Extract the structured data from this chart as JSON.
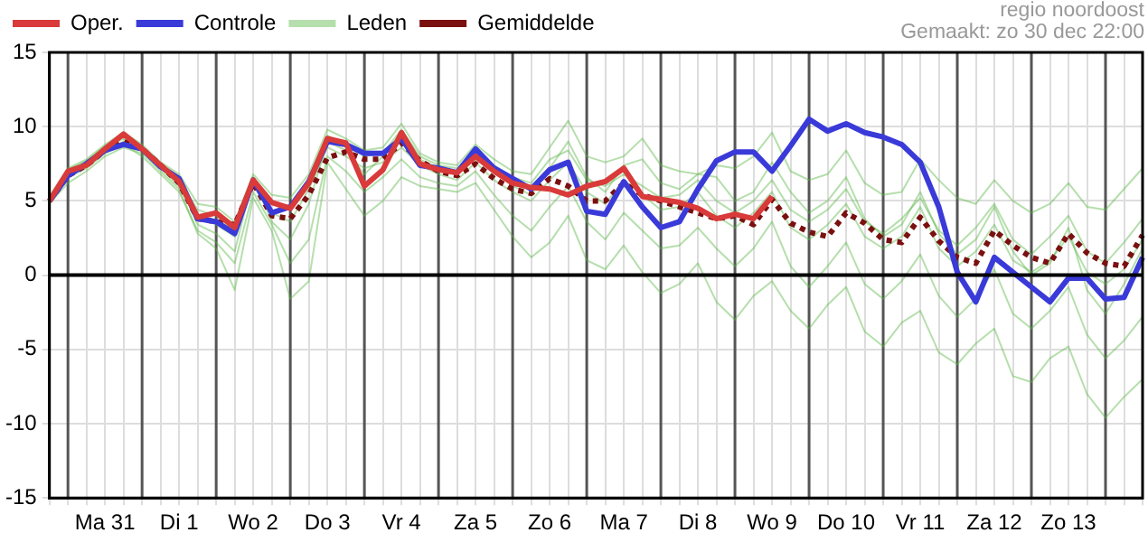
{
  "chart_data": {
    "type": "line",
    "annotations": [
      "regio noordoost",
      "Gemaakt: zo 30 dec 22:00"
    ],
    "categories": [
      null,
      null,
      null,
      "Ma 31",
      null,
      null,
      null,
      "Di 1",
      null,
      null,
      null,
      "Wo 2",
      null,
      null,
      null,
      "Do 3",
      null,
      null,
      null,
      "Vr 4",
      null,
      null,
      null,
      "Za 5",
      null,
      null,
      null,
      "Zo 6",
      null,
      null,
      null,
      "Ma 7",
      null,
      null,
      null,
      "Di 8",
      null,
      null,
      null,
      "Wo 9",
      null,
      null,
      null,
      "Do 10",
      null,
      null,
      null,
      "Vr 11",
      null,
      null,
      null,
      "Za 12",
      null,
      null,
      null,
      "Zo 13",
      null,
      null,
      null,
      null
    ],
    "ylim": [
      -15,
      15
    ],
    "yticks": [
      -15,
      -10,
      -5,
      0,
      5,
      10,
      15
    ],
    "grid": true,
    "legend": "top left",
    "marker": "none",
    "ref_lines": [
      {
        "axis": "y",
        "value": 0,
        "color": "#000000"
      }
    ],
    "series": [
      {
        "name": "Oper.",
        "color": "#d93a3a",
        "values": [
          5.0,
          7.0,
          7.4,
          8.5,
          9.5,
          8.5,
          7.4,
          6.3,
          3.9,
          4.2,
          3.2,
          6.4,
          4.9,
          4.5,
          6.2,
          9.2,
          8.9,
          6.0,
          7.1,
          9.6,
          7.5,
          7.1,
          6.9,
          8.0,
          7.0,
          6.2,
          5.9,
          5.8,
          5.4,
          6.0,
          6.3,
          7.2,
          5.3,
          5.1,
          4.9,
          4.5,
          3.8,
          4.1,
          3.8,
          5.3,
          null,
          null,
          null,
          null,
          null,
          null,
          null,
          null,
          null,
          null,
          null,
          null,
          null,
          null,
          null,
          null,
          null,
          null,
          null,
          null
        ]
      },
      {
        "name": "Controle",
        "color": "#3a3ad9",
        "values": [
          5.0,
          6.7,
          7.5,
          8.4,
          8.8,
          8.5,
          7.3,
          6.5,
          3.8,
          3.6,
          2.8,
          6.4,
          4.2,
          4.6,
          6.3,
          9.0,
          8.8,
          8.2,
          8.2,
          9.2,
          7.4,
          7.2,
          6.9,
          8.5,
          7.2,
          6.5,
          5.8,
          7.1,
          7.6,
          4.3,
          4.1,
          6.3,
          4.6,
          3.2,
          3.6,
          5.8,
          7.7,
          8.3,
          8.3,
          7.0,
          8.7,
          10.5,
          9.7,
          10.2,
          9.6,
          9.3,
          8.8,
          7.6,
          4.6,
          0.2,
          -1.8,
          1.2,
          0.2,
          -0.8,
          -1.8,
          -0.2,
          -0.2,
          -1.6,
          -1.5,
          1.2
        ]
      },
      {
        "name": "Leden",
        "color": "#5cb848",
        "values": [
          5.3,
          7.2,
          7.8,
          8.8,
          9.6,
          8.8,
          7.6,
          6.8,
          4.8,
          4.6,
          3.6,
          6.8,
          5.4,
          5.2,
          6.8,
          9.8,
          9.2,
          8.4,
          8.6,
          10.2,
          8.2,
          7.6,
          7.4,
          8.8,
          7.8,
          7.0,
          6.8,
          8.6,
          10.4,
          8.0,
          7.6,
          8.0,
          9.2,
          7.4,
          7.0,
          6.8,
          7.4,
          7.2,
          8.0,
          9.6,
          7.0,
          6.4,
          6.8,
          8.4,
          6.2,
          5.4,
          5.6,
          7.8,
          6.4,
          5.2,
          4.8,
          6.4,
          5.0,
          4.2,
          4.8,
          6.2,
          4.6,
          4.4,
          5.8,
          7.2
        ]
      },
      {
        "color": "#5cb848",
        "values": [
          4.8,
          6.2,
          7.0,
          8.0,
          8.6,
          8.2,
          7.0,
          5.8,
          2.8,
          1.8,
          -1.0,
          5.2,
          3.0,
          -1.6,
          -0.4,
          7.6,
          5.8,
          4.0,
          5.0,
          6.6,
          6.0,
          5.8,
          5.6,
          6.2,
          4.4,
          2.6,
          1.2,
          2.2,
          4.0,
          1.0,
          0.4,
          2.0,
          0.2,
          -1.2,
          -0.6,
          0.8,
          -1.8,
          -3.0,
          -1.4,
          -0.4,
          -2.4,
          -3.6,
          -2.0,
          -0.8,
          -3.8,
          -4.8,
          -3.2,
          -2.4,
          -5.2,
          -6.0,
          -4.6,
          -3.6,
          -6.8,
          -7.2,
          -5.6,
          -4.8,
          -8.0,
          -9.6,
          -8.2,
          -7.0
        ]
      },
      {
        "color": "#5cb848",
        "values": [
          5.0,
          6.8,
          7.4,
          8.4,
          9.0,
          8.6,
          7.2,
          6.0,
          4.0,
          3.4,
          2.6,
          6.0,
          4.2,
          3.6,
          5.8,
          8.6,
          8.0,
          7.2,
          7.6,
          8.6,
          7.4,
          6.8,
          6.4,
          7.6,
          6.4,
          5.6,
          5.0,
          6.4,
          7.6,
          5.6,
          4.8,
          6.4,
          5.4,
          4.4,
          4.6,
          5.6,
          4.0,
          3.2,
          4.2,
          5.6,
          3.2,
          2.4,
          3.4,
          4.8,
          2.6,
          1.8,
          2.6,
          4.6,
          1.8,
          0.6,
          1.6,
          3.4,
          1.0,
          0.2,
          1.0,
          2.6,
          0.2,
          -0.6,
          0.4,
          2.4
        ]
      },
      {
        "color": "#5cb848",
        "values": [
          5.1,
          7.0,
          7.6,
          8.6,
          9.2,
          8.4,
          7.3,
          6.2,
          3.4,
          2.8,
          1.6,
          6.6,
          3.6,
          2.4,
          4.8,
          9.0,
          8.4,
          6.8,
          8.0,
          9.4,
          7.8,
          7.2,
          7.0,
          8.2,
          7.0,
          6.0,
          5.4,
          7.2,
          9.0,
          6.6,
          5.6,
          7.4,
          7.8,
          6.2,
          5.8,
          6.8,
          6.6,
          5.0,
          5.6,
          7.6,
          5.6,
          4.2,
          5.0,
          6.6,
          3.8,
          2.6,
          3.4,
          5.6,
          2.8,
          1.4,
          2.4,
          4.6,
          1.6,
          0.0,
          0.8,
          3.2,
          -1.0,
          -2.6,
          -0.6,
          1.8
        ]
      },
      {
        "color": "#5cb848",
        "values": [
          4.9,
          6.6,
          7.2,
          8.2,
          8.8,
          8.0,
          6.8,
          5.6,
          3.0,
          2.2,
          0.8,
          5.6,
          3.4,
          0.8,
          2.4,
          8.0,
          7.0,
          5.6,
          6.6,
          7.8,
          6.6,
          6.2,
          6.0,
          7.0,
          5.4,
          4.0,
          3.0,
          4.6,
          6.0,
          3.6,
          2.4,
          4.2,
          3.0,
          1.8,
          2.0,
          3.2,
          1.8,
          0.6,
          1.8,
          3.6,
          0.6,
          -0.8,
          0.6,
          2.2,
          -0.6,
          -1.6,
          -0.4,
          1.4,
          -1.4,
          -2.8,
          -1.6,
          0.4,
          -2.6,
          -3.6,
          -2.4,
          -0.8,
          -4.0,
          -5.6,
          -4.4,
          -2.8
        ]
      },
      {
        "color": "#5cb848",
        "values": [
          5.2,
          7.1,
          7.7,
          8.7,
          9.4,
          8.6,
          7.5,
          6.4,
          4.4,
          4.0,
          3.0,
          6.2,
          4.8,
          4.4,
          6.2,
          9.4,
          8.8,
          8.0,
          8.2,
          9.8,
          8.0,
          7.4,
          7.2,
          8.4,
          7.4,
          6.6,
          6.2,
          7.8,
          8.4,
          6.4,
          6.0,
          6.8,
          6.0,
          5.2,
          5.4,
          6.4,
          5.0,
          4.2,
          5.0,
          6.4,
          4.4,
          3.6,
          4.4,
          5.8,
          3.6,
          2.8,
          3.8,
          5.2,
          3.0,
          2.0,
          3.2,
          4.8,
          2.4,
          1.4,
          2.6,
          4.0,
          1.6,
          0.8,
          2.2,
          3.8
        ]
      },
      {
        "name": "Gemiddelde",
        "color": "#7a1010",
        "line_style": "dotted",
        "values": [
          5.0,
          6.7,
          7.4,
          8.4,
          9.0,
          8.5,
          7.4,
          6.2,
          3.8,
          3.6,
          3.4,
          6.2,
          4.0,
          3.8,
          5.4,
          7.9,
          8.3,
          7.8,
          7.8,
          8.9,
          7.7,
          7.0,
          6.7,
          7.5,
          6.5,
          5.8,
          5.5,
          6.5,
          6.0,
          5.0,
          5.0,
          6.2,
          5.4,
          5.0,
          4.6,
          4.2,
          3.8,
          4.0,
          3.4,
          5.1,
          3.5,
          2.9,
          2.6,
          4.2,
          3.5,
          2.4,
          2.2,
          3.9,
          2.3,
          1.2,
          0.8,
          3.0,
          2.0,
          1.2,
          0.8,
          2.8,
          1.5,
          0.8,
          0.6,
          2.7
        ]
      }
    ]
  }
}
